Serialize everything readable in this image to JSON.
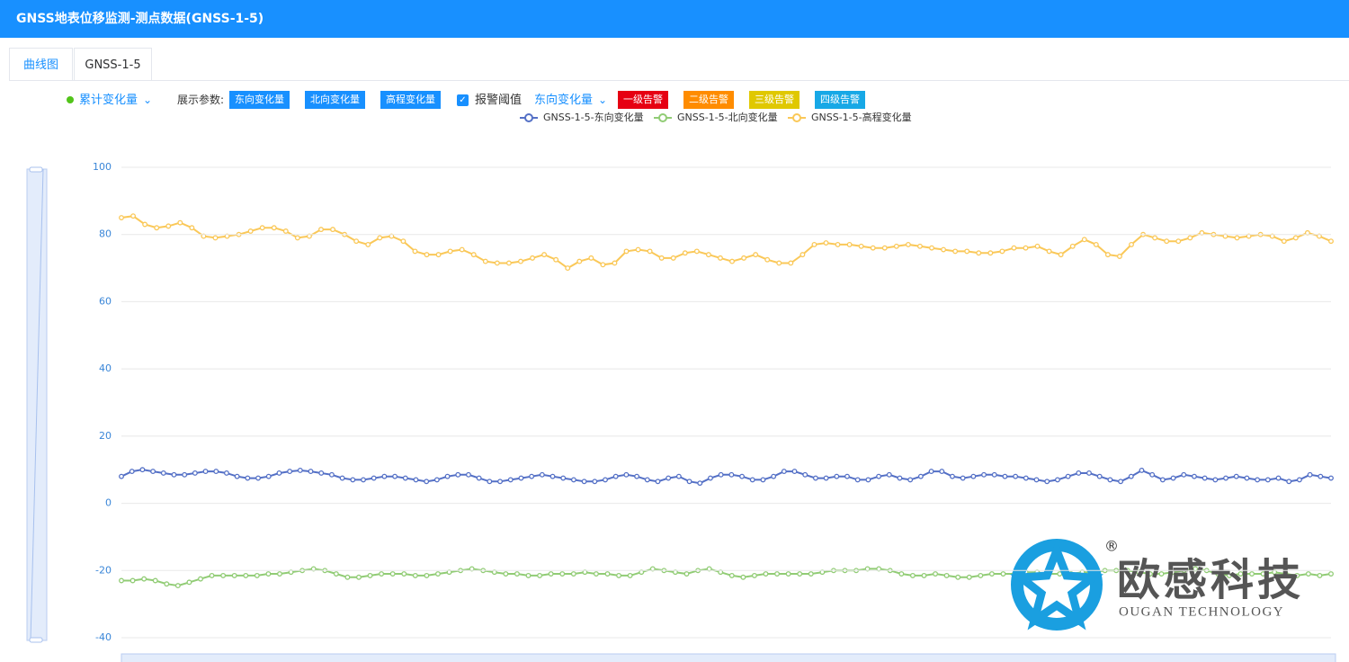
{
  "header": {
    "title": "GNSS地表位移监测-测点数据(GNSS-1-5)"
  },
  "tabs": [
    "曲线图",
    "GNSS-1-5"
  ],
  "toolbar": {
    "mode": "累计变化量",
    "params_label": "展示参数:",
    "params": [
      "东向变化量",
      "北向变化量",
      "高程变化量"
    ],
    "alarm_label": "报警阈值",
    "alarm_direction": "东向变化量",
    "alarms": [
      {
        "label": "一级告警",
        "color": "#e60012"
      },
      {
        "label": "二级告警",
        "color": "#ff8c00"
      },
      {
        "label": "三级告警",
        "color": "#e0c800"
      },
      {
        "label": "四级告警",
        "color": "#17a8e6"
      }
    ]
  },
  "watermark": {
    "name": "欧感科技",
    "english": "OUGAN TECHNOLOGY",
    "mark": "®"
  },
  "chart_data": {
    "type": "line",
    "ylim": [
      -40,
      100
    ],
    "yticks": [
      -40,
      -20,
      0,
      20,
      40,
      60,
      80,
      100
    ],
    "grid": true,
    "series": [
      {
        "name": "GNSS-1-5-东向变化量",
        "color": "#5470c6",
        "values": [
          8,
          9.5,
          10,
          9.5,
          9,
          8.5,
          8.5,
          9,
          9.5,
          9.5,
          9,
          8,
          7.5,
          7.5,
          8,
          9,
          9.5,
          9.8,
          9.5,
          9,
          8.5,
          7.5,
          7,
          7,
          7.5,
          8,
          8,
          7.5,
          7,
          6.5,
          7,
          8,
          8.5,
          8.5,
          7.5,
          6.5,
          6.5,
          7,
          7.5,
          8,
          8.5,
          8,
          7.5,
          7,
          6.5,
          6.5,
          7,
          8,
          8.5,
          8,
          7,
          6.5,
          7.5,
          8,
          6.5,
          6,
          7.5,
          8.5,
          8.5,
          8,
          7,
          7,
          8,
          9.5,
          9.5,
          8.5,
          7.5,
          7.5,
          8,
          8,
          7,
          7,
          8,
          8.5,
          7.5,
          7,
          8,
          9.5,
          9.5,
          8,
          7.5,
          8,
          8.5,
          8.5,
          8,
          8,
          7.5,
          7,
          6.5,
          7,
          8,
          9,
          9,
          8,
          7,
          6.5,
          8,
          9.8,
          8.5,
          7,
          7.5,
          8.5,
          8,
          7.5,
          7,
          7.5,
          8,
          7.5,
          7,
          7,
          7.5,
          6.5,
          7,
          8.5,
          8,
          7.5
        ]
      },
      {
        "name": "GNSS-1-5-北向变化量",
        "color": "#91cc75",
        "values": [
          -23,
          -23,
          -22.5,
          -23,
          -24,
          -24.5,
          -23.5,
          -22.5,
          -21.5,
          -21.5,
          -21.5,
          -21.5,
          -21.5,
          -21,
          -21,
          -20.5,
          -20,
          -19.5,
          -20,
          -21,
          -22,
          -22,
          -21.5,
          -21,
          -21,
          -21,
          -21.5,
          -21.5,
          -21,
          -20.5,
          -20,
          -19.5,
          -20,
          -20.5,
          -21,
          -21,
          -21.5,
          -21.5,
          -21,
          -21,
          -21,
          -20.5,
          -21,
          -21,
          -21.5,
          -21.5,
          -20.5,
          -19.5,
          -20,
          -20.5,
          -21,
          -20,
          -19.5,
          -20.5,
          -21.5,
          -22,
          -21.5,
          -21,
          -21,
          -21,
          -21,
          -21,
          -20.5,
          -20,
          -20,
          -20,
          -19.5,
          -19.5,
          -20,
          -21,
          -21.5,
          -21.5,
          -21,
          -21.5,
          -22,
          -22,
          -21.5,
          -21,
          -21,
          -21,
          -20.5,
          -20.5,
          -21,
          -21,
          -21,
          -20.5,
          -20.5,
          -20,
          -20,
          -20,
          -20.5,
          -21,
          -21,
          -20.5,
          -20,
          -19.5,
          -20,
          -21,
          -21.5,
          -21,
          -21,
          -21,
          -20.5,
          -21,
          -21.5,
          -21,
          -21.5,
          -21
        ]
      },
      {
        "name": "GNSS-1-5-高程变化量",
        "color": "#fac858",
        "values": [
          85,
          85.5,
          83,
          82,
          82.5,
          83.5,
          82,
          79.5,
          79,
          79.5,
          80,
          81,
          82,
          82,
          81,
          79,
          79.5,
          81.5,
          81.5,
          80,
          78,
          77,
          79,
          79.5,
          78,
          75,
          74,
          74,
          75,
          75.5,
          74,
          72,
          71.5,
          71.5,
          72,
          73,
          74,
          72.5,
          70,
          72,
          73,
          71,
          71.5,
          75,
          75.5,
          75,
          73,
          73,
          74.5,
          75,
          74,
          73,
          72,
          73,
          74,
          72.5,
          71.5,
          71.5,
          74,
          77,
          77.5,
          77,
          77,
          76.5,
          76,
          76,
          76.5,
          77,
          76.5,
          76,
          75.5,
          75,
          75,
          74.5,
          74.5,
          75,
          76,
          76,
          76.5,
          75,
          74,
          76.5,
          78.5,
          77,
          74,
          73.5,
          77,
          80,
          79,
          78,
          78,
          79,
          80.5,
          80,
          79.5,
          79,
          79.5,
          80,
          79.5,
          78,
          79,
          80.5,
          79.5,
          78
        ]
      }
    ]
  }
}
